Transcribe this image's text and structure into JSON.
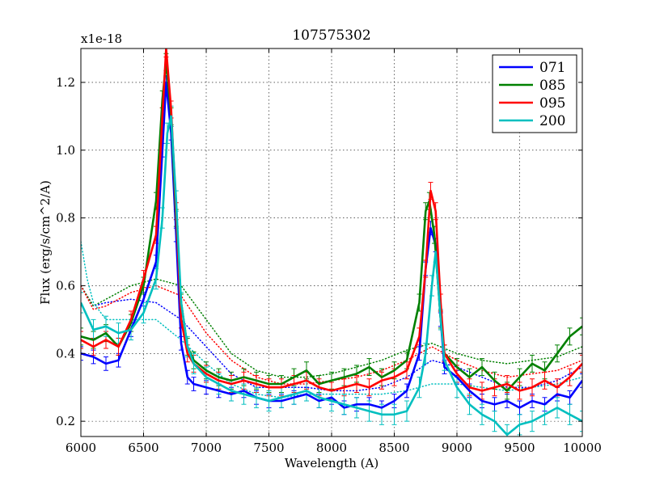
{
  "chart_data": {
    "type": "line",
    "title": "107575302",
    "xlabel": "Wavelength (A)",
    "ylabel": "Flux (erg/s/cm^2/A)",
    "offset_label": "x1e-18",
    "scale": 1e-18,
    "xlim": [
      6000,
      10000
    ],
    "ylim": [
      0.155,
      1.3
    ],
    "xticks": [
      6000,
      6500,
      7000,
      7500,
      8000,
      8500,
      9000,
      9500,
      10000
    ],
    "yticks": [
      0.2,
      0.4,
      0.6,
      0.8,
      1.0,
      1.2
    ],
    "ytick_labels": [
      "0.2",
      "0.4",
      "0.6",
      "0.8",
      "1.0",
      "1.2"
    ],
    "grid": true,
    "legend_position": "top-right",
    "series": [
      {
        "name": "071",
        "color": "#0000ff",
        "x": [
          6000,
          6100,
          6200,
          6300,
          6400,
          6500,
          6600,
          6650,
          6680,
          6720,
          6760,
          6800,
          6850,
          6900,
          7000,
          7100,
          7200,
          7300,
          7400,
          7500,
          7600,
          7700,
          7800,
          7900,
          8000,
          8100,
          8200,
          8300,
          8400,
          8500,
          8600,
          8700,
          8750,
          8790,
          8830,
          8870,
          8900,
          9000,
          9100,
          9200,
          9300,
          9400,
          9500,
          9600,
          9700,
          9800,
          9900,
          10000
        ],
        "y": [
          0.4,
          0.39,
          0.37,
          0.38,
          0.47,
          0.56,
          0.67,
          1.0,
          1.2,
          1.05,
          0.75,
          0.43,
          0.33,
          0.31,
          0.3,
          0.29,
          0.28,
          0.29,
          0.27,
          0.26,
          0.26,
          0.27,
          0.28,
          0.26,
          0.27,
          0.24,
          0.25,
          0.25,
          0.24,
          0.26,
          0.29,
          0.4,
          0.65,
          0.77,
          0.72,
          0.5,
          0.36,
          0.33,
          0.29,
          0.26,
          0.25,
          0.26,
          0.24,
          0.26,
          0.25,
          0.28,
          0.27,
          0.32
        ],
        "err": 0.02
      },
      {
        "name": "085",
        "color": "#008000",
        "x": [
          6000,
          6100,
          6200,
          6300,
          6400,
          6500,
          6600,
          6650,
          6680,
          6720,
          6760,
          6800,
          6850,
          6900,
          7000,
          7100,
          7200,
          7300,
          7400,
          7500,
          7600,
          7700,
          7800,
          7900,
          8000,
          8100,
          8200,
          8300,
          8400,
          8500,
          8600,
          8700,
          8750,
          8780,
          8820,
          8870,
          8900,
          9000,
          9100,
          9200,
          9300,
          9400,
          9500,
          9600,
          9700,
          9800,
          9900,
          10000
        ],
        "y": [
          0.45,
          0.44,
          0.46,
          0.42,
          0.49,
          0.6,
          0.85,
          1.15,
          1.26,
          1.1,
          0.8,
          0.55,
          0.42,
          0.38,
          0.35,
          0.33,
          0.32,
          0.33,
          0.32,
          0.31,
          0.31,
          0.33,
          0.35,
          0.31,
          0.32,
          0.33,
          0.34,
          0.36,
          0.33,
          0.35,
          0.38,
          0.55,
          0.82,
          0.85,
          0.75,
          0.5,
          0.4,
          0.36,
          0.33,
          0.36,
          0.32,
          0.29,
          0.33,
          0.37,
          0.35,
          0.4,
          0.45,
          0.48
        ],
        "err": 0.025
      },
      {
        "name": "095",
        "color": "#ff0000",
        "x": [
          6000,
          6100,
          6200,
          6300,
          6400,
          6500,
          6600,
          6650,
          6680,
          6720,
          6760,
          6800,
          6850,
          6900,
          7000,
          7100,
          7200,
          7300,
          7400,
          7500,
          7600,
          7700,
          7800,
          7900,
          8000,
          8100,
          8200,
          8300,
          8400,
          8500,
          8600,
          8700,
          8750,
          8790,
          8830,
          8870,
          8900,
          9000,
          9100,
          9200,
          9300,
          9400,
          9500,
          9600,
          9700,
          9800,
          9900,
          10000
        ],
        "y": [
          0.44,
          0.42,
          0.44,
          0.42,
          0.5,
          0.62,
          0.75,
          1.1,
          1.3,
          1.12,
          0.82,
          0.5,
          0.4,
          0.37,
          0.34,
          0.32,
          0.31,
          0.32,
          0.31,
          0.3,
          0.3,
          0.31,
          0.32,
          0.3,
          0.29,
          0.3,
          0.31,
          0.3,
          0.32,
          0.33,
          0.35,
          0.45,
          0.65,
          0.88,
          0.82,
          0.55,
          0.4,
          0.34,
          0.3,
          0.29,
          0.3,
          0.31,
          0.29,
          0.3,
          0.32,
          0.3,
          0.33,
          0.37
        ],
        "err": 0.025
      },
      {
        "name": "200",
        "color": "#00bfbf",
        "x": [
          6000,
          6100,
          6200,
          6300,
          6400,
          6500,
          6600,
          6650,
          6690,
          6720,
          6760,
          6800,
          6850,
          6900,
          7000,
          7100,
          7200,
          7300,
          7400,
          7500,
          7600,
          7700,
          7800,
          7900,
          8000,
          8100,
          8200,
          8300,
          8400,
          8500,
          8600,
          8700,
          8750,
          8800,
          8830,
          8870,
          8900,
          9000,
          9100,
          9200,
          9300,
          9400,
          9500,
          9600,
          9700,
          9800,
          9900,
          10000
        ],
        "y": [
          0.55,
          0.47,
          0.48,
          0.46,
          0.47,
          0.52,
          0.62,
          0.8,
          1.05,
          1.1,
          0.85,
          0.55,
          0.42,
          0.37,
          0.33,
          0.31,
          0.29,
          0.28,
          0.27,
          0.26,
          0.27,
          0.28,
          0.29,
          0.27,
          0.26,
          0.25,
          0.24,
          0.23,
          0.22,
          0.22,
          0.23,
          0.3,
          0.4,
          0.6,
          0.7,
          0.5,
          0.38,
          0.3,
          0.25,
          0.22,
          0.2,
          0.16,
          0.19,
          0.2,
          0.22,
          0.24,
          0.22,
          0.2
        ],
        "err": 0.03
      }
    ],
    "dotted_series": [
      {
        "name": "071-model",
        "color": "#0000ff",
        "x": [
          6000,
          6100,
          6200,
          6400,
          6600,
          6800,
          7000,
          7200,
          7400,
          7600,
          7800,
          8000,
          8200,
          8400,
          8600,
          8800,
          9000,
          9200,
          9400,
          9600,
          9800,
          10000
        ],
        "y": [
          0.6,
          0.54,
          0.55,
          0.56,
          0.55,
          0.5,
          0.42,
          0.34,
          0.3,
          0.3,
          0.3,
          0.29,
          0.29,
          0.3,
          0.33,
          0.38,
          0.36,
          0.33,
          0.3,
          0.3,
          0.32,
          0.36
        ]
      },
      {
        "name": "085-model",
        "color": "#008000",
        "x": [
          6000,
          6100,
          6200,
          6400,
          6600,
          6800,
          7000,
          7200,
          7400,
          7600,
          7800,
          8000,
          8200,
          8400,
          8600,
          8800,
          9000,
          9200,
          9400,
          9600,
          9800,
          10000
        ],
        "y": [
          0.6,
          0.54,
          0.56,
          0.6,
          0.62,
          0.6,
          0.5,
          0.4,
          0.35,
          0.33,
          0.33,
          0.34,
          0.36,
          0.38,
          0.41,
          0.43,
          0.4,
          0.38,
          0.37,
          0.38,
          0.39,
          0.42
        ]
      },
      {
        "name": "095-model",
        "color": "#ff0000",
        "x": [
          6000,
          6100,
          6200,
          6400,
          6600,
          6800,
          7000,
          7200,
          7400,
          7600,
          7800,
          8000,
          8200,
          8400,
          8600,
          8800,
          9000,
          9200,
          9400,
          9600,
          9800,
          10000
        ],
        "y": [
          0.6,
          0.53,
          0.54,
          0.58,
          0.6,
          0.57,
          0.46,
          0.38,
          0.33,
          0.31,
          0.31,
          0.32,
          0.33,
          0.35,
          0.38,
          0.42,
          0.38,
          0.35,
          0.33,
          0.34,
          0.35,
          0.38
        ]
      },
      {
        "name": "200-model",
        "color": "#00bfbf",
        "x": [
          6000,
          6050,
          6100,
          6200,
          6400,
          6600,
          6800,
          7000,
          7200,
          7400,
          7600,
          7800,
          8000,
          8200,
          8400,
          8600,
          8800,
          9000,
          9200,
          9400,
          9600,
          9800,
          10000
        ],
        "y": [
          0.73,
          0.62,
          0.55,
          0.5,
          0.5,
          0.5,
          0.44,
          0.37,
          0.31,
          0.28,
          0.27,
          0.28,
          0.28,
          0.28,
          0.28,
          0.29,
          0.31,
          0.31,
          0.3,
          0.29,
          0.3,
          0.31,
          0.33
        ]
      }
    ]
  }
}
